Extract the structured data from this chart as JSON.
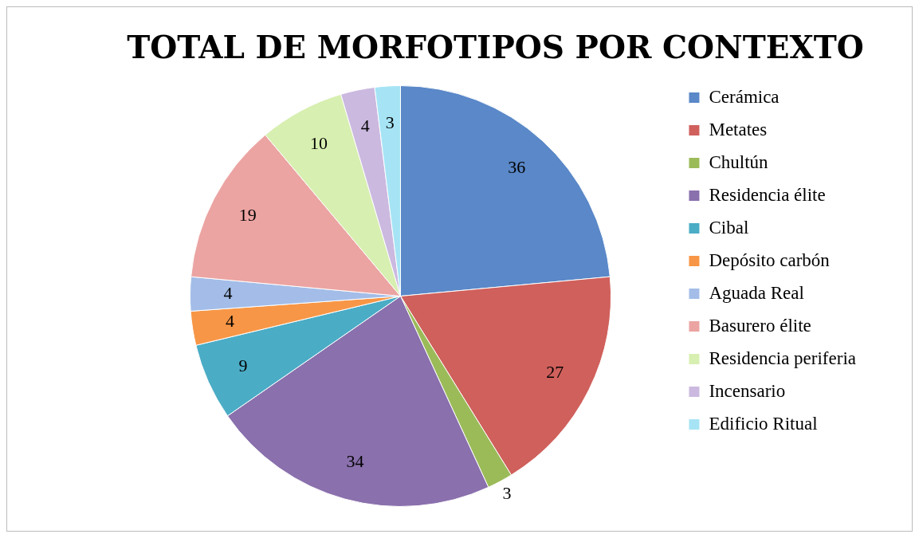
{
  "chart_data": {
    "type": "pie",
    "title": "TOTAL DE MORFOTIPOS POR CONTEXTO",
    "categories": [
      "Cerámica",
      "Metates",
      "Chultún",
      "Residencia élite",
      "Cibal",
      "Depósito carbón",
      "Aguada Real",
      "Basurero élite",
      "Residencia periferia",
      "Incensario",
      "Edificio Ritual"
    ],
    "values": [
      36,
      27,
      3,
      34,
      9,
      4,
      4,
      19,
      10,
      4,
      3
    ],
    "colors": [
      "#5a88c8",
      "#d0605c",
      "#9bbb59",
      "#8a70ad",
      "#4bacc6",
      "#f79646",
      "#a3bde8",
      "#eba4a2",
      "#d7efb0",
      "#cbb9e0",
      "#a6e4f5"
    ],
    "data_labels": true,
    "legend": "right"
  }
}
